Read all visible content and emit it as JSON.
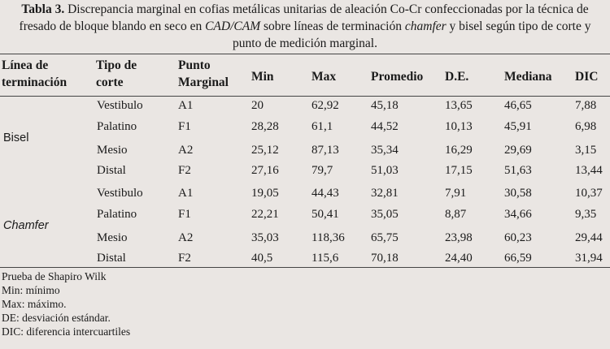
{
  "caption": {
    "label": "Tabla 3.",
    "p1": " Discrepancia marginal en cofias metálicas unitarias de aleación Co-Cr confeccionadas por la técnica de fresado de bloque blando en seco en ",
    "cadcam": "CAD/CAM",
    "p2": " sobre líneas de terminación ",
    "chamfer": "chamfer",
    "p3": " y bisel según tipo de corte y punto de medición marginal."
  },
  "headers": {
    "linea_1": "Línea de",
    "linea_2": "terminación",
    "tipo_1": "Tipo de",
    "tipo_2": "corte",
    "punto_1": "Punto",
    "punto_2": "Marginal",
    "min": "Min",
    "max": "Max",
    "promedio": "Promedio",
    "de": "D.E.",
    "mediana": "Mediana",
    "dic": "DIC"
  },
  "groups": [
    {
      "label": "Bisel"
    },
    {
      "label": "Chamfer"
    }
  ],
  "rows": [
    {
      "corte": "Vestibulo",
      "punto": "A1",
      "min": "20",
      "max": "62,92",
      "promedio": "45,18",
      "de": "13,65",
      "mediana": "46,65",
      "dic": "7,88"
    },
    {
      "corte": "Palatino",
      "punto": "F1",
      "min": "28,28",
      "max": "61,1",
      "promedio": "44,52",
      "de": "10,13",
      "mediana": "45,91",
      "dic": "6,98"
    },
    {
      "corte": "Mesio",
      "punto": "A2",
      "min": "25,12",
      "max": "87,13",
      "promedio": "35,34",
      "de": "16,29",
      "mediana": "29,69",
      "dic": "3,15"
    },
    {
      "corte": "Distal",
      "punto": "F2",
      "min": "27,16",
      "max": "79,7",
      "promedio": "51,03",
      "de": "17,15",
      "mediana": "51,63",
      "dic": "13,44"
    },
    {
      "corte": "Vestibulo",
      "punto": "A1",
      "min": "19,05",
      "max": "44,43",
      "promedio": "32,81",
      "de": "7,91",
      "mediana": "30,58",
      "dic": "10,37"
    },
    {
      "corte": "Palatino",
      "punto": "F1",
      "min": "22,21",
      "max": "50,41",
      "promedio": "35,05",
      "de": "8,87",
      "mediana": "34,66",
      "dic": "9,35"
    },
    {
      "corte": "Mesio",
      "punto": "A2",
      "min": "35,03",
      "max": "118,36",
      "promedio": "65,75",
      "de": "23,98",
      "mediana": "60,23",
      "dic": "29,44"
    },
    {
      "corte": "Distal",
      "punto": "F2",
      "min": "40,5",
      "max": "115,6",
      "promedio": "70,18",
      "de": "24,40",
      "mediana": "66,59",
      "dic": "31,94"
    }
  ],
  "notes": [
    "Prueba de Shapiro Wilk",
    "Min: mínimo",
    "Max: máximo.",
    "DE: desviación estándar.",
    "DIC: diferencia intercuartiles"
  ]
}
